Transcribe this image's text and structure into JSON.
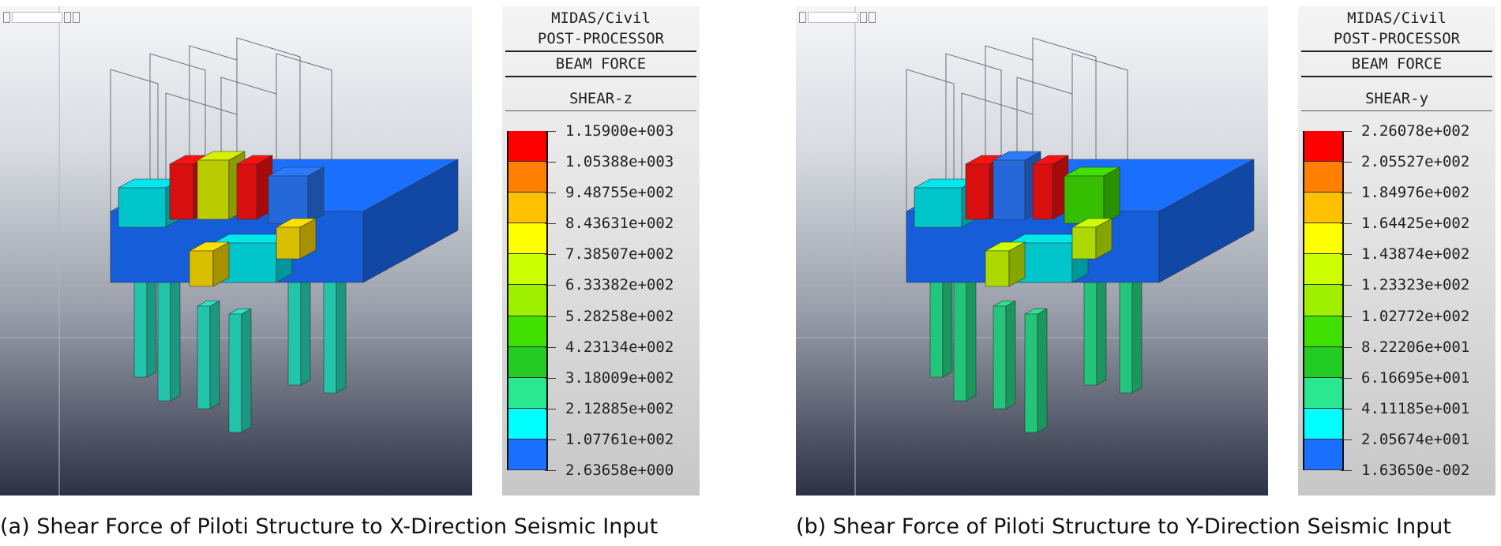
{
  "panels": [
    {
      "id": "a",
      "legend": {
        "title_line1": "MIDAS/Civil",
        "title_line2": "POST-PROCESSOR",
        "result_type": "BEAM FORCE",
        "component": "SHEAR-z",
        "values": [
          "1.15900e+003",
          "1.05388e+003",
          "9.48755e+002",
          "8.43631e+002",
          "7.38507e+002",
          "6.33382e+002",
          "5.28258e+002",
          "4.23134e+002",
          "3.18009e+002",
          "2.12885e+002",
          "1.07761e+002",
          "2.63658e+000"
        ]
      },
      "caption": "(a) Shear Force of Piloti Structure to X-Direction Seismic Input"
    },
    {
      "id": "b",
      "legend": {
        "title_line1": "MIDAS/Civil",
        "title_line2": "POST-PROCESSOR",
        "result_type": "BEAM FORCE",
        "component": "SHEAR-y",
        "values": [
          "2.26078e+002",
          "2.05527e+002",
          "1.84976e+002",
          "1.64425e+002",
          "1.43874e+002",
          "1.23323e+002",
          "1.02772e+002",
          "8.22206e+001",
          "6.16695e+001",
          "4.11185e+001",
          "2.05674e+001",
          "1.63650e-002"
        ]
      },
      "caption": "(b) Shear Force of Piloti Structure to Y-Direction Seismic Input"
    }
  ],
  "color_scale": [
    "#ff0000",
    "#ff7f00",
    "#ffc000",
    "#ffff00",
    "#ccff00",
    "#9fef00",
    "#40e000",
    "#22cc22",
    "#29e890",
    "#00ffff",
    "#1a6fff"
  ]
}
